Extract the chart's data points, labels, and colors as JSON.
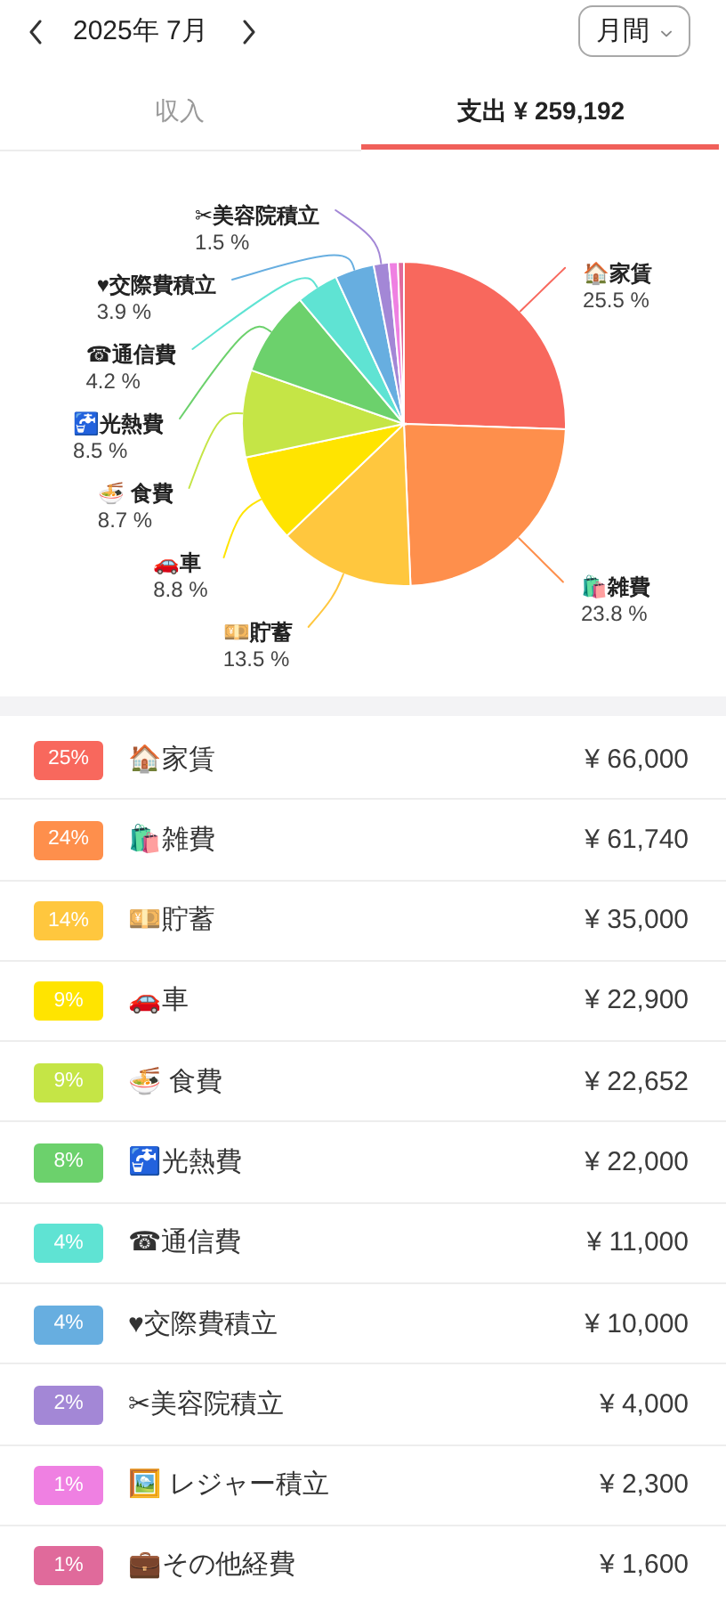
{
  "chart_data": [
    {
      "type": "pie",
      "title": "2025年 7月",
      "subtitle": "支出 ¥ 259,192",
      "annotations": [
        "月間",
        "収入"
      ],
      "categories": [
        "🏠家賃",
        "🛍️雑費",
        "💴貯蓄",
        "🚗車",
        "🍜 食費",
        "🚰光熱費",
        "☎通信費",
        "♥交際費積立",
        "✂美容院積立",
        null,
        null
      ],
      "values": [
        25.5,
        23.8,
        13.5,
        8.8,
        8.7,
        8.5,
        4.2,
        3.9,
        1.5,
        0.9,
        0.6
      ],
      "value_labels": [
        "25.5 %",
        "23.8 %",
        "13.5 %",
        "8.8 %",
        "8.7 %",
        "8.5 %",
        "4.2 %",
        "3.9 %",
        "1.5 %",
        null,
        null
      ],
      "colors": [
        "#f8685d",
        "#fe8f4c",
        "#ffc73e",
        "#ffe400",
        "#c5e546",
        "#6cd16c",
        "#5fe3d3",
        "#67aee0",
        "#a387d6",
        "#ef80e2",
        "#e06a9b"
      ]
    },
    {
      "type": "other",
      "categories": [
        "🏠家賃",
        "🛍️雑費",
        "💴貯蓄",
        "🚗車",
        "🍜 食費",
        "🚰光熱費",
        "☎通信費",
        "♥交際費積立",
        "✂美容院積立",
        "🖼️ レジャー積立",
        "💼その他経費"
      ],
      "value_labels": [
        "¥ 66,000",
        "¥ 61,740",
        "¥ 35,000",
        "¥ 22,900",
        "¥ 22,652",
        "¥ 22,000",
        "¥ 11,000",
        "¥ 10,000",
        "¥ 4,000",
        "¥ 2,300",
        "¥ 1,600"
      ],
      "annotations": [
        "25%",
        "24%",
        "14%",
        "9%",
        "9%",
        "8%",
        "4%",
        "4%",
        "2%",
        "1%",
        "1%"
      ],
      "colors": [
        "#f8685d",
        "#fe8f4c",
        "#ffc73e",
        "#ffe400",
        "#c5e546",
        "#6cd16c",
        "#5fe3d3",
        "#67aee0",
        "#a387d6",
        "#ef80e2",
        "#e06a9b"
      ]
    }
  ]
}
